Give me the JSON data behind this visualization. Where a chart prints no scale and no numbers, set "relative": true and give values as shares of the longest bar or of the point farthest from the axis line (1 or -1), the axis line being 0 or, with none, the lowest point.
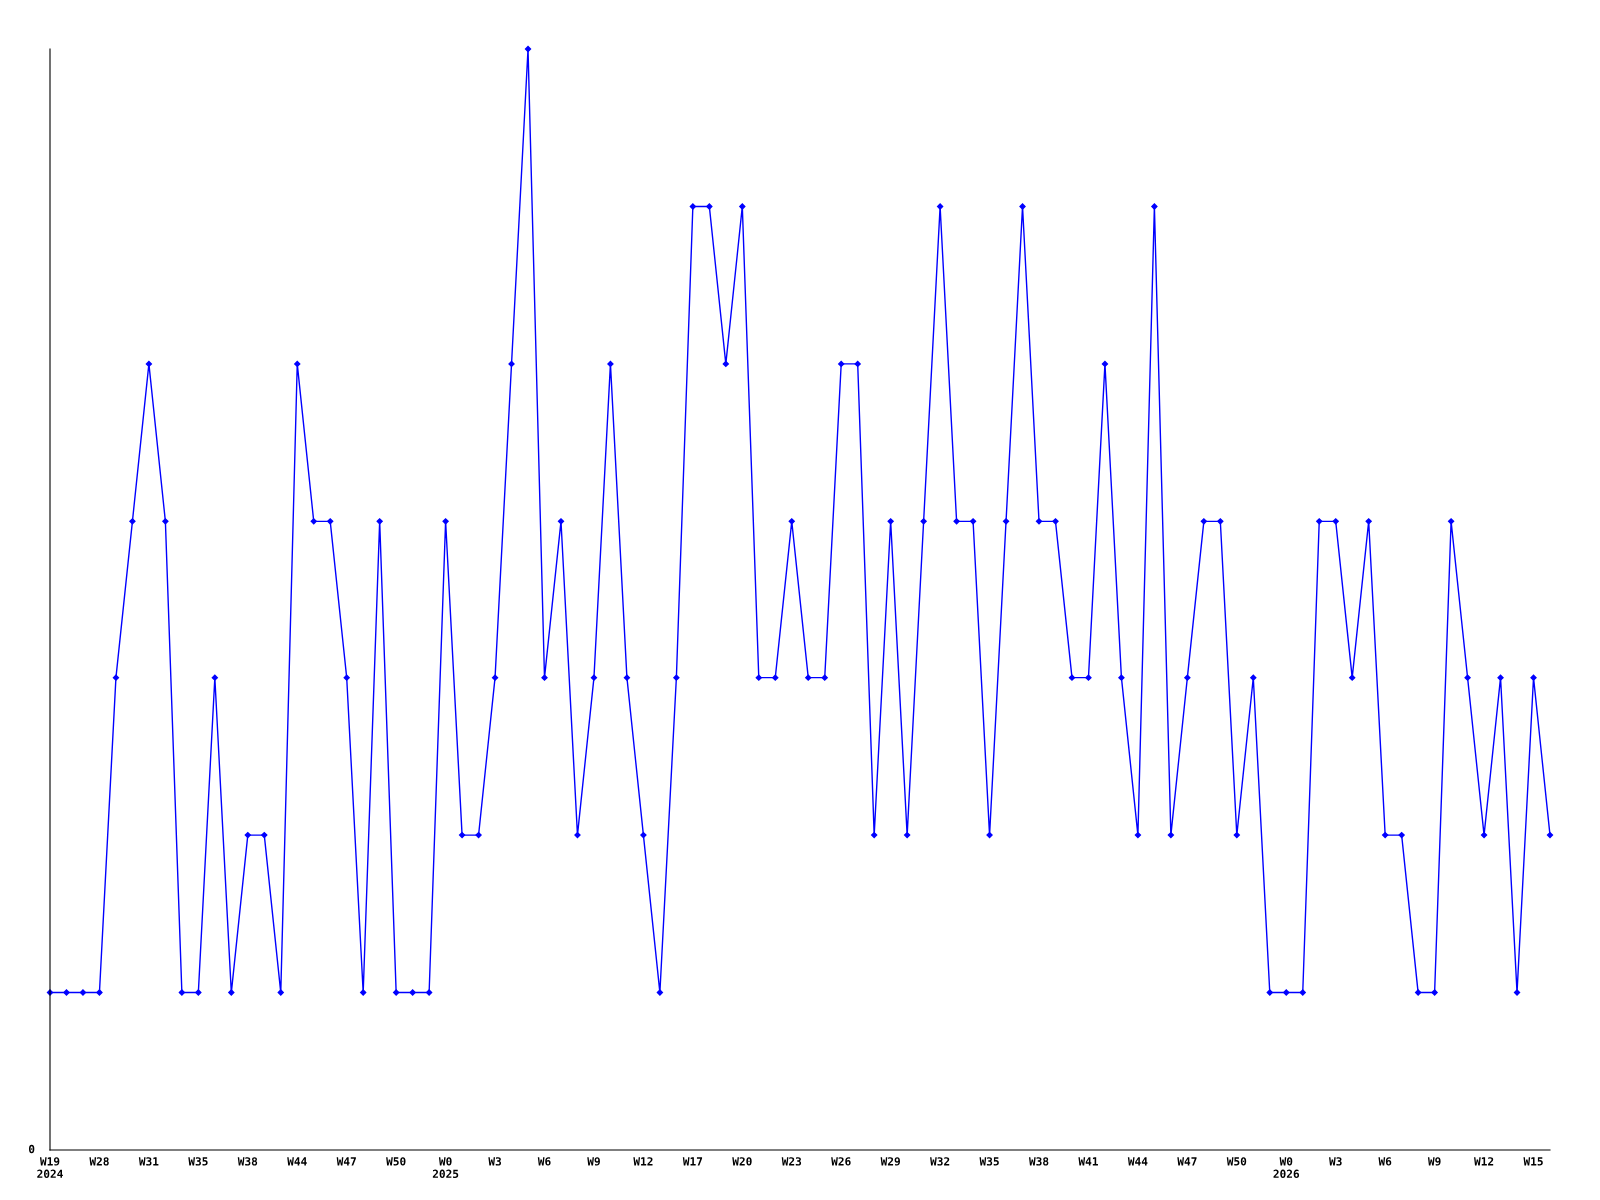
{
  "chart_data": {
    "type": "line",
    "relative": true,
    "color": "#0000ff",
    "marker": "diamond",
    "line_style": "solid",
    "grid": false,
    "legend": false,
    "categories": [
      "W19\n2024",
      null,
      null,
      "W28",
      null,
      null,
      "W31",
      null,
      null,
      "W35",
      null,
      null,
      "W38",
      null,
      null,
      "W44",
      null,
      null,
      "W47",
      null,
      null,
      "W50",
      null,
      null,
      "W0\n2025",
      null,
      null,
      "W3",
      null,
      null,
      "W6",
      null,
      null,
      "W9",
      null,
      null,
      "W12",
      null,
      null,
      "W17",
      null,
      null,
      "W20",
      null,
      null,
      "W23",
      null,
      null,
      "W26",
      null,
      null,
      "W29",
      null,
      null,
      "W32",
      null,
      null,
      "W35",
      null,
      null,
      "W38",
      null,
      null,
      "W41",
      null,
      null,
      "W44",
      null,
      null,
      "W47",
      null,
      null,
      "W50",
      null,
      null,
      "W0\n2026",
      null,
      null,
      "W3",
      null,
      null,
      "W6",
      null,
      null,
      "W9",
      null,
      null,
      "W12",
      null,
      null,
      "W15",
      null
    ],
    "values": [
      0.143,
      0.143,
      0.143,
      0.143,
      0.429,
      0.571,
      0.714,
      0.571,
      0.143,
      0.143,
      0.429,
      0.143,
      0.286,
      0.286,
      0.143,
      0.714,
      0.571,
      0.571,
      0.429,
      0.143,
      0.571,
      0.143,
      0.143,
      0.143,
      0.571,
      0.286,
      0.286,
      0.429,
      0.714,
      1,
      0.429,
      0.571,
      0.286,
      0.429,
      0.714,
      0.429,
      0.286,
      0.143,
      0.429,
      0.857,
      0.857,
      0.714,
      0.857,
      0.429,
      0.429,
      0.571,
      0.429,
      0.429,
      0.714,
      0.714,
      0.286,
      0.571,
      0.286,
      0.571,
      0.857,
      0.571,
      0.571,
      0.286,
      0.571,
      0.857,
      0.571,
      0.571,
      0.429,
      0.429,
      0.714,
      0.429,
      0.286,
      0.857,
      0.286,
      0.429,
      0.571,
      0.571,
      0.286,
      0.429,
      0.143,
      0.143,
      0.143,
      0.571,
      0.571,
      0.429,
      0.571,
      0.286,
      0.286,
      0.143,
      0.143,
      0.571,
      0.429,
      0.286,
      0.429,
      0.143,
      0.429,
      0.286
    ],
    "annotations": [
      "0"
    ]
  }
}
